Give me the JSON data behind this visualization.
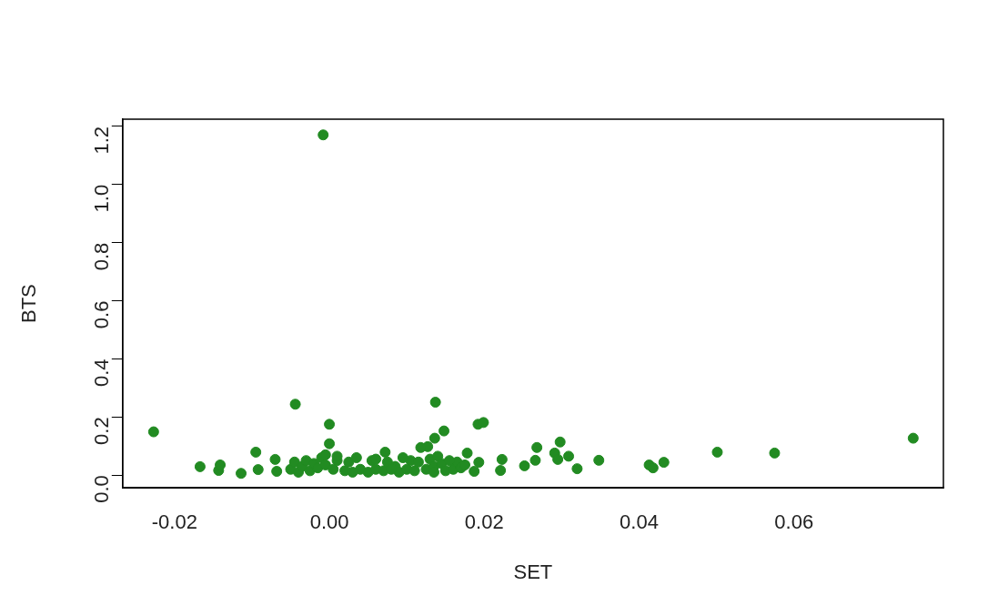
{
  "chart_data": {
    "type": "scatter",
    "xlabel": "SET",
    "ylabel": "BTS",
    "color": "#228b22",
    "marker": "circle",
    "grid": false,
    "legend": false,
    "xlim": [
      -0.0267,
      0.0793
    ],
    "ylim": [
      -0.044,
      1.225
    ],
    "xticks": [
      {
        "value": -0.02,
        "label": "-0.02"
      },
      {
        "value": 0,
        "label": "0.00"
      },
      {
        "value": 0.02,
        "label": "0.02"
      },
      {
        "value": 0.04,
        "label": "0.04"
      },
      {
        "value": 0.06,
        "label": "0.06"
      }
    ],
    "yticks": [
      {
        "value": 0,
        "label": "0.0"
      },
      {
        "value": 0.2,
        "label": "0.2"
      },
      {
        "value": 0.4,
        "label": "0.4"
      },
      {
        "value": 0.6,
        "label": "0.6"
      },
      {
        "value": 0.8,
        "label": "0.8"
      },
      {
        "value": 1,
        "label": "1.0"
      },
      {
        "value": 1.2,
        "label": "1.2"
      }
    ],
    "x": [
      -0.0227,
      -0.0167,
      -0.0143,
      -0.0141,
      -0.0114,
      -0.0095,
      -0.0092,
      -0.007,
      -0.0068,
      -0.0044,
      -0.0008,
      0,
      0,
      0.0137,
      0.0148,
      0.0136,
      0.0127,
      0.0118,
      0.0178,
      0.0192,
      0.0199,
      0.0072,
      -0.005,
      -0.0045,
      -0.004,
      -0.0035,
      -0.003,
      -0.0025,
      -0.002,
      -0.0015,
      -0.001,
      -0.0005,
      0.0005,
      0.001,
      0.002,
      0.0025,
      0.0035,
      0.004,
      0.005,
      0.0055,
      0.006,
      0.007,
      0.0075,
      0.0085,
      0.009,
      0.01,
      0.0105,
      0.011,
      0.0125,
      0.013,
      0.0135,
      0.014,
      0.0145,
      0.015,
      0.016,
      0.0165,
      0.017,
      0.001,
      0.003,
      0.006,
      0.008,
      0.0095,
      0.0115,
      0.0135,
      0.0155,
      0.0175,
      -0.0005,
      0.0193,
      0.0187,
      0.0223,
      0.0221,
      0.0252,
      0.0266,
      0.0268,
      0.0298,
      0.0291,
      0.0295,
      0.0309,
      0.032,
      0.0348,
      0.0413,
      0.0418,
      0.0432,
      0.0501,
      0.0575,
      0.0754
    ],
    "values": [
      0.149,
      0.029,
      0.016,
      0.035,
      0.006,
      0.079,
      0.019,
      0.054,
      0.013,
      0.244,
      1.171,
      0.175,
      0.108,
      0.251,
      0.152,
      0.127,
      0.098,
      0.095,
      0.076,
      0.175,
      0.181,
      0.079,
      0.02,
      0.045,
      0.01,
      0.03,
      0.05,
      0.015,
      0.04,
      0.025,
      0.06,
      0.035,
      0.02,
      0.05,
      0.015,
      0.045,
      0.06,
      0.02,
      0.01,
      0.05,
      0.02,
      0.015,
      0.045,
      0.03,
      0.01,
      0.02,
      0.05,
      0.015,
      0.02,
      0.055,
      0.03,
      0.065,
      0.04,
      0.015,
      0.02,
      0.045,
      0.025,
      0.065,
      0.01,
      0.055,
      0.02,
      0.06,
      0.045,
      0.01,
      0.05,
      0.035,
      0.07,
      0.044,
      0.013,
      0.054,
      0.016,
      0.032,
      0.051,
      0.095,
      0.114,
      0.076,
      0.054,
      0.065,
      0.022,
      0.051,
      0.035,
      0.025,
      0.044,
      0.079,
      0.076,
      0.127
    ]
  }
}
